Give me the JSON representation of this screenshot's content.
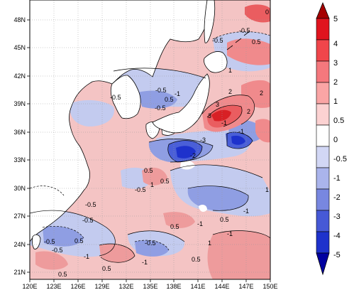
{
  "map": {
    "lon_labels": [
      "120E",
      "123E",
      "126E",
      "129E",
      "132E",
      "135E",
      "138E",
      "141E",
      "144E",
      "147E",
      "150E"
    ],
    "lat_labels": [
      "48N",
      "45N",
      "42N",
      "39N",
      "36N",
      "33N",
      "30N",
      "27N",
      "24N",
      "21N"
    ],
    "contour_labels": [
      {
        "text": "-0.5"
      },
      {
        "text": "-0.5"
      },
      {
        "text": "0.5"
      },
      {
        "text": "0"
      },
      {
        "text": "1"
      },
      {
        "text": "-0.5"
      },
      {
        "text": "0.5"
      },
      {
        "text": "-0.5"
      },
      {
        "text": "-1"
      },
      {
        "text": "-0.5"
      },
      {
        "text": "2"
      },
      {
        "text": "3"
      },
      {
        "text": "2"
      },
      {
        "text": "2"
      },
      {
        "text": "-1"
      },
      {
        "text": "3"
      },
      {
        "text": "-1"
      },
      {
        "text": "-3"
      },
      {
        "text": "-2"
      },
      {
        "text": "0.5"
      },
      {
        "text": "1"
      },
      {
        "text": "-0.5"
      },
      {
        "text": "0.5"
      },
      {
        "text": "1"
      },
      {
        "text": "-0.5"
      },
      {
        "text": "-1"
      },
      {
        "text": "-1"
      },
      {
        "text": "0.5"
      },
      {
        "text": "-1"
      },
      {
        "text": "0.5"
      },
      {
        "text": "1"
      },
      {
        "text": "-0.5"
      },
      {
        "text": "-0.5"
      },
      {
        "text": "0.5"
      },
      {
        "text": "-1"
      },
      {
        "text": "-1"
      },
      {
        "text": "0.5"
      },
      {
        "text": "0.5"
      },
      {
        "text": "-0.5"
      },
      {
        "text": "0.5"
      },
      {
        "text": "-0.5"
      }
    ]
  },
  "colorbar": {
    "labels": [
      "5",
      "4",
      "3",
      "2",
      "1",
      "0.5",
      "0",
      "-0.5",
      "-1",
      "-2",
      "-3",
      "-4",
      "-5"
    ],
    "colors": [
      "#a50000",
      "#e0141e",
      "#f0464b",
      "#f5787d",
      "#faa5a5",
      "#fcd2d2",
      "#ffffff",
      "#d2d7f5",
      "#aab4ec",
      "#7887e0",
      "#4659d6",
      "#1e32cc",
      "#0000a0"
    ]
  }
}
